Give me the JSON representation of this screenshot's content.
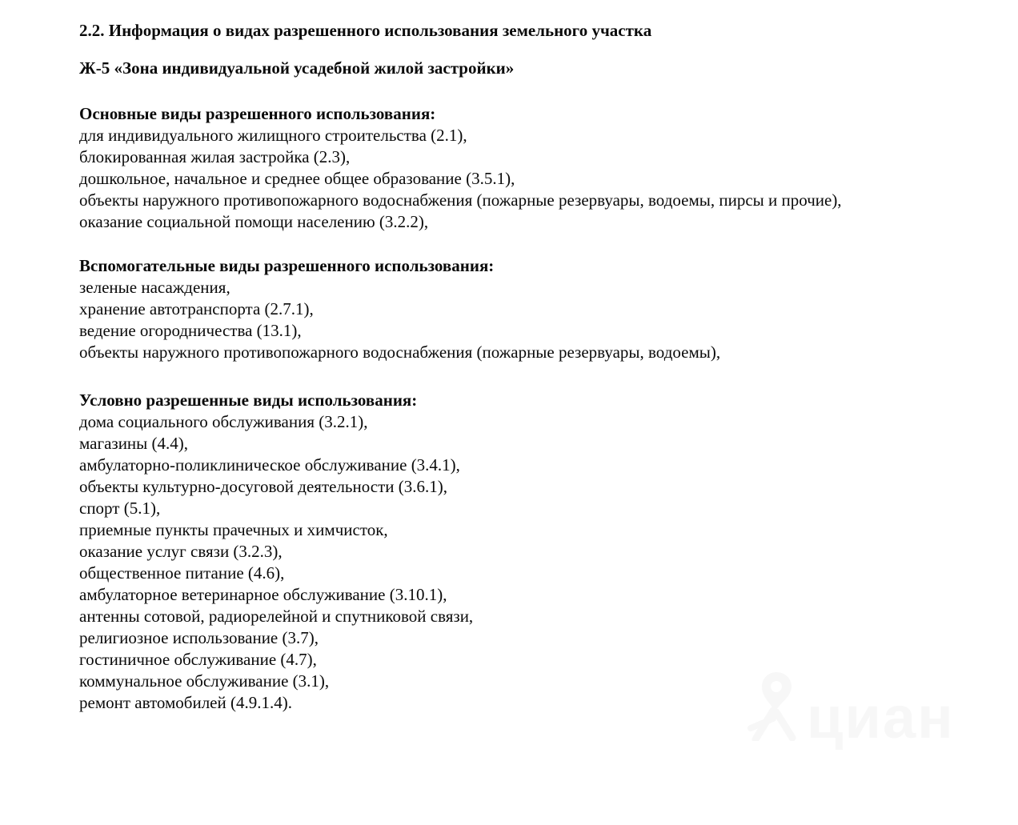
{
  "page": {
    "background_color": "#ffffff",
    "text_color": "#0a0a0a"
  },
  "document": {
    "title": "2.2. Информация о видах разрешенного использования земельного участка",
    "zone_title": "Ж-5 «Зона индивидуальной усадебной жилой застройки»",
    "sections": [
      {
        "heading": "Основные виды разрешенного использования:",
        "items": [
          "для индивидуального жилищного строительства (2.1),",
          "блокированная жилая застройка (2.3),",
          "дошкольное, начальное и среднее общее образование (3.5.1),",
          "объекты наружного противопожарного водоснабжения (пожарные резервуары, водоемы, пирсы и прочие),",
          "оказание социальной помощи населению (3.2.2),"
        ]
      },
      {
        "heading": "Вспомогательные виды разрешенного использования:",
        "items": [
          "зеленые насаждения,",
          "хранение автотранспорта (2.7.1),",
          "ведение огородничества (13.1),",
          "объекты наружного противопожарного водоснабжения (пожарные резервуары, водоемы),"
        ]
      },
      {
        "heading": "Условно разрешенные виды использования:",
        "items": [
          "дома социального обслуживания (3.2.1),",
          "магазины (4.4),",
          "амбулаторно-поликлиническое обслуживание (3.4.1),",
          "объекты культурно-досуговой деятельности (3.6.1),",
          "спорт (5.1),",
          "приемные пункты прачечных и химчисток,",
          "оказание услуг связи (3.2.3),",
          "общественное питание (4.6),",
          "амбулаторное ветеринарное обслуживание (3.10.1),",
          "антенны сотовой, радиорелейной и спутниковой связи,",
          "религиозное использование (3.7),",
          "гостиничное обслуживание (4.7),",
          "коммунальное обслуживание (3.1),",
          "ремонт автомобилей (4.9.1.4)."
        ]
      }
    ]
  },
  "watermark": {
    "label": "циан",
    "icon": "cian-logo-icon",
    "color": "#f7f7f7"
  }
}
